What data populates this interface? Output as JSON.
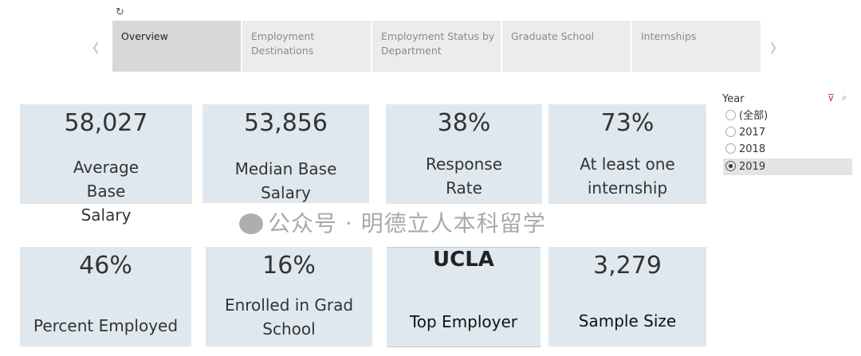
{
  "toolbar": {
    "revert_icon": "revert-icon"
  },
  "tabs": [
    {
      "label": "Overview",
      "active": true
    },
    {
      "label": "Employment Destinations"
    },
    {
      "label": "Employment Status by Department"
    },
    {
      "label": "Graduate School"
    },
    {
      "label": "Internships"
    }
  ],
  "nav": {
    "prev": "‹",
    "next": "›"
  },
  "kpis": [
    {
      "value": "58,027",
      "label": "Average Base Salary"
    },
    {
      "value": "53,856",
      "label": "Median Base Salary"
    },
    {
      "value": "38%",
      "label": "Response Rate"
    },
    {
      "value": "73%",
      "label": "At least one internship"
    },
    {
      "value": "46%",
      "label": "Percent Employed"
    },
    {
      "value": "16%",
      "label": "Enrolled in Grad School"
    },
    {
      "value": "UCLA",
      "label": "Top Employer"
    },
    {
      "value": "3,279",
      "label": "Sample Size"
    }
  ],
  "filter": {
    "title": "Year",
    "options": [
      "(全部)",
      "2017",
      "2018",
      "2019"
    ],
    "selected": "2019"
  },
  "watermark": "公众号 · 明德立人本科留学",
  "colors": {
    "card": "#dfe8ee",
    "tab_active": "#d8d8d8",
    "tab": "#ececec"
  }
}
